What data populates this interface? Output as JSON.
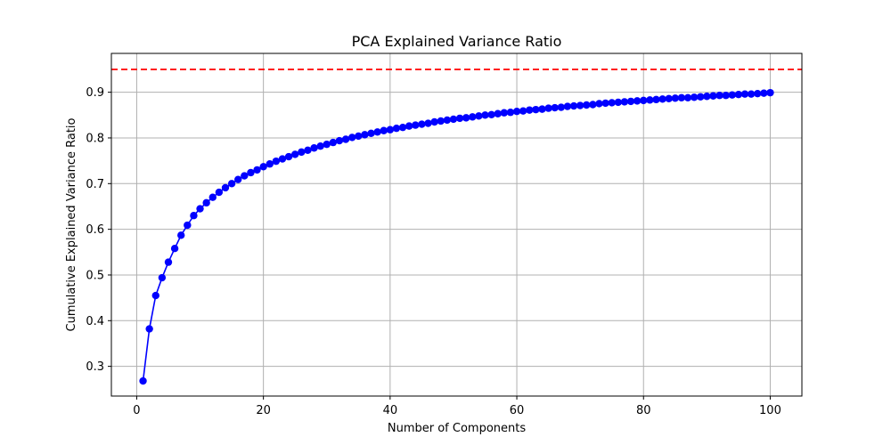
{
  "chart_data": {
    "type": "line",
    "title": "PCA Explained Variance Ratio",
    "xlabel": "Number of Components",
    "ylabel": "Cumulative Explained Variance Ratio",
    "xlim": [
      -4,
      105
    ],
    "ylim": [
      0.235,
      0.985
    ],
    "xticks": [
      0,
      20,
      40,
      60,
      80,
      100
    ],
    "xtick_labels": [
      "0",
      "20",
      "40",
      "60",
      "80",
      "100"
    ],
    "yticks": [
      0.3,
      0.4,
      0.5,
      0.6,
      0.7,
      0.8,
      0.9
    ],
    "ytick_labels": [
      "0.3",
      "0.4",
      "0.5",
      "0.6",
      "0.7",
      "0.8",
      "0.9"
    ],
    "grid": true,
    "legend": "none",
    "threshold": {
      "value": 0.95,
      "color": "#ff0000",
      "style": "dashed"
    },
    "series": [
      {
        "color": "#0000ff",
        "marker": "circle",
        "x": [
          1,
          2,
          3,
          4,
          5,
          6,
          7,
          8,
          9,
          10,
          11,
          12,
          13,
          14,
          15,
          16,
          17,
          18,
          19,
          20,
          21,
          22,
          23,
          24,
          25,
          26,
          27,
          28,
          29,
          30,
          31,
          32,
          33,
          34,
          35,
          36,
          37,
          38,
          39,
          40,
          41,
          42,
          43,
          44,
          45,
          46,
          47,
          48,
          49,
          50,
          51,
          52,
          53,
          54,
          55,
          56,
          57,
          58,
          59,
          60,
          61,
          62,
          63,
          64,
          65,
          66,
          67,
          68,
          69,
          70,
          71,
          72,
          73,
          74,
          75,
          76,
          77,
          78,
          79,
          80,
          81,
          82,
          83,
          84,
          85,
          86,
          87,
          88,
          89,
          90,
          91,
          92,
          93,
          94,
          95,
          96,
          97,
          98,
          99,
          100
        ],
        "values": [
          0.268,
          0.382,
          0.455,
          0.494,
          0.528,
          0.558,
          0.587,
          0.609,
          0.63,
          0.645,
          0.658,
          0.67,
          0.681,
          0.691,
          0.7,
          0.709,
          0.717,
          0.724,
          0.73,
          0.737,
          0.743,
          0.749,
          0.754,
          0.759,
          0.764,
          0.769,
          0.773,
          0.778,
          0.782,
          0.786,
          0.79,
          0.794,
          0.797,
          0.801,
          0.804,
          0.807,
          0.81,
          0.813,
          0.816,
          0.818,
          0.821,
          0.823,
          0.826,
          0.828,
          0.83,
          0.832,
          0.835,
          0.837,
          0.839,
          0.841,
          0.843,
          0.844,
          0.846,
          0.848,
          0.85,
          0.851,
          0.853,
          0.855,
          0.856,
          0.858,
          0.859,
          0.861,
          0.862,
          0.863,
          0.865,
          0.866,
          0.867,
          0.869,
          0.87,
          0.871,
          0.872,
          0.873,
          0.875,
          0.876,
          0.877,
          0.878,
          0.879,
          0.88,
          0.881,
          0.882,
          0.883,
          0.884,
          0.885,
          0.886,
          0.887,
          0.888,
          0.888,
          0.889,
          0.89,
          0.891,
          0.892,
          0.893,
          0.893,
          0.894,
          0.895,
          0.896,
          0.896,
          0.897,
          0.898,
          0.899
        ]
      }
    ]
  }
}
